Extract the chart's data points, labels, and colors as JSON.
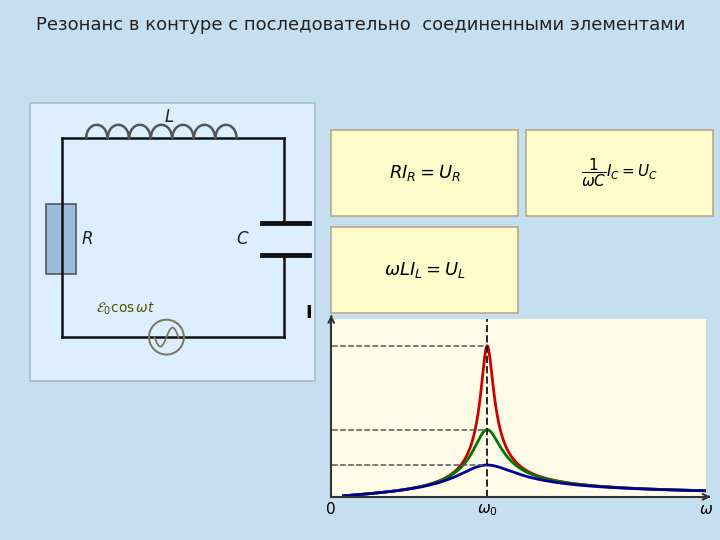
{
  "title": "Резонанс в контуре с последовательно  соединенными элементами",
  "title_fontsize": 13,
  "title_color": "#222222",
  "bg_color": "#c5dff0",
  "circuit_bg": "#ddeeff",
  "circuit_border": "#aabbcc",
  "graph_bg": "#fffde8",
  "curve_colors": [
    "#cc0000",
    "#007700",
    "#000099"
  ],
  "curve_damping": [
    0.08,
    0.18,
    0.38
  ],
  "omega0": 1.0,
  "graph_xlim": [
    0,
    2.4
  ],
  "graph_ylim_factor": 1.18
}
